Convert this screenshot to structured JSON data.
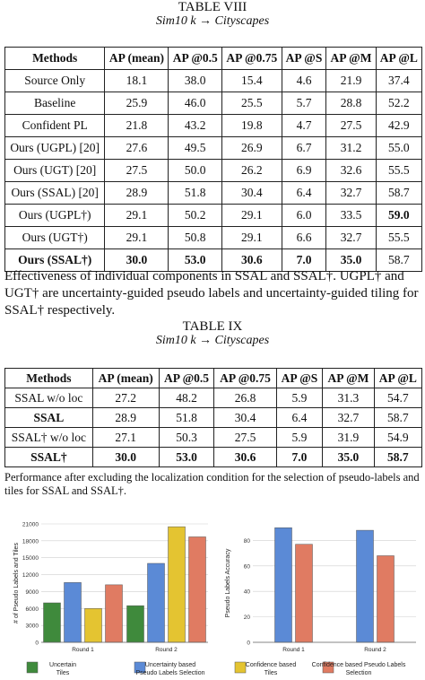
{
  "table8": {
    "title": "TABLE VIII",
    "subtitle": "Sim10 k → Cityscapes",
    "headers": [
      "Methods",
      "AP (mean)",
      "AP @0.5",
      "AP @0.75",
      "AP @S",
      "AP @M",
      "AP @L"
    ],
    "rows": [
      {
        "name": "Source Only",
        "vals": [
          "18.1",
          "38.0",
          "15.4",
          "4.6",
          "21.9",
          "37.4"
        ]
      },
      {
        "name": "Baseline",
        "vals": [
          "25.9",
          "46.0",
          "25.5",
          "5.7",
          "28.8",
          "52.2"
        ]
      },
      {
        "name": "Confident PL",
        "vals": [
          "21.8",
          "43.2",
          "19.8",
          "4.7",
          "27.5",
          "42.9"
        ]
      },
      {
        "name": "Ours (UGPL) [20]",
        "vals": [
          "27.6",
          "49.5",
          "26.9",
          "6.7",
          "31.2",
          "55.0"
        ]
      },
      {
        "name": "Ours (UGT) [20]",
        "vals": [
          "27.5",
          "50.0",
          "26.2",
          "6.9",
          "32.6",
          "55.5"
        ]
      },
      {
        "name": "Ours (SSAL) [20]",
        "vals": [
          "28.9",
          "51.8",
          "30.4",
          "6.4",
          "32.7",
          "58.7"
        ]
      },
      {
        "name": "Ours (UGPL†)",
        "vals": [
          "29.1",
          "50.2",
          "29.1",
          "6.0",
          "33.5",
          "59.0"
        ]
      },
      {
        "name": "Ours (UGT†)",
        "vals": [
          "29.1",
          "50.8",
          "29.1",
          "6.6",
          "32.7",
          "55.5"
        ]
      },
      {
        "name": "Ours (SSAL†)",
        "vals": [
          "30.0",
          "53.0",
          "30.6",
          "7.0",
          "35.0",
          "58.7"
        ]
      }
    ],
    "note": "Effectiveness of individual components in SSAL and SSAL†. UGPL† and UGT† are uncertainty-guided pseudo labels and uncertainty-guided tiling for SSAL† respectively."
  },
  "table9": {
    "title": "TABLE IX",
    "subtitle": "Sim10 k → Cityscapes",
    "headers": [
      "Methods",
      "AP (mean)",
      "AP @0.5",
      "AP @0.75",
      "AP @S",
      "AP @M",
      "AP @L"
    ],
    "rows": [
      {
        "name": "SSAL w/o loc",
        "vals": [
          "27.2",
          "48.2",
          "26.8",
          "5.9",
          "31.3",
          "54.7"
        ]
      },
      {
        "name": "SSAL",
        "vals": [
          "28.9",
          "51.8",
          "30.4",
          "6.4",
          "32.7",
          "58.7"
        ]
      },
      {
        "name": "SSAL† w/o loc",
        "vals": [
          "27.1",
          "50.3",
          "27.5",
          "5.9",
          "31.9",
          "54.9"
        ]
      },
      {
        "name": "SSAL†",
        "vals": [
          "30.0",
          "53.0",
          "30.6",
          "7.0",
          "35.0",
          "58.7"
        ]
      }
    ],
    "note": "Performance after excluding the localization condition for the selection of pseudo-labels and tiles for SSAL and SSAL†."
  },
  "chart_data": [
    {
      "type": "bar",
      "ylabel": "# of Pseudo Labels and Tiles",
      "categories": [
        "Round 1",
        "Round 2"
      ],
      "yticks": [
        "0",
        "3000",
        "6000",
        "9000",
        "12000",
        "15000",
        "18000",
        "21000"
      ],
      "ylim": [
        0,
        21000
      ],
      "series": [
        {
          "name": "Uncertain Tiles",
          "values": [
            7000,
            6500
          ]
        },
        {
          "name": "Uncertainty based Pseudo Labels Selection",
          "values": [
            10600,
            14000
          ]
        },
        {
          "name": "Confidence based Tiles",
          "values": [
            6000,
            20500
          ]
        },
        {
          "name": "Confidence based Pseudo Labels Selection",
          "values": [
            10200,
            18700
          ]
        }
      ]
    },
    {
      "type": "bar",
      "ylabel": "Pseudo Labels Accuracy",
      "categories": [
        "Round 1",
        "Round 2"
      ],
      "yticks": [
        "0",
        "20",
        "40",
        "60",
        "80"
      ],
      "ylim": [
        0,
        93
      ],
      "series": [
        {
          "name": "Uncertainty based Pseudo Labels Selection",
          "values": [
            90,
            88
          ]
        },
        {
          "name": "Confidence based Pseudo Labels Selection",
          "values": [
            77,
            68
          ]
        }
      ]
    }
  ],
  "legend": [
    {
      "line1": "Uncertain",
      "line2": "Tiles",
      "color": "#3f8a3c"
    },
    {
      "line1": "Uncertainty based",
      "line2": "Pseudo Labels Selection",
      "color": "#5b8ad6"
    },
    {
      "line1": "Confidence based",
      "line2": "Tiles",
      "color": "#e4c431"
    },
    {
      "line1": "Confidence based Pseudo Labels",
      "line2": "Selection",
      "color": "#e07b62"
    }
  ]
}
